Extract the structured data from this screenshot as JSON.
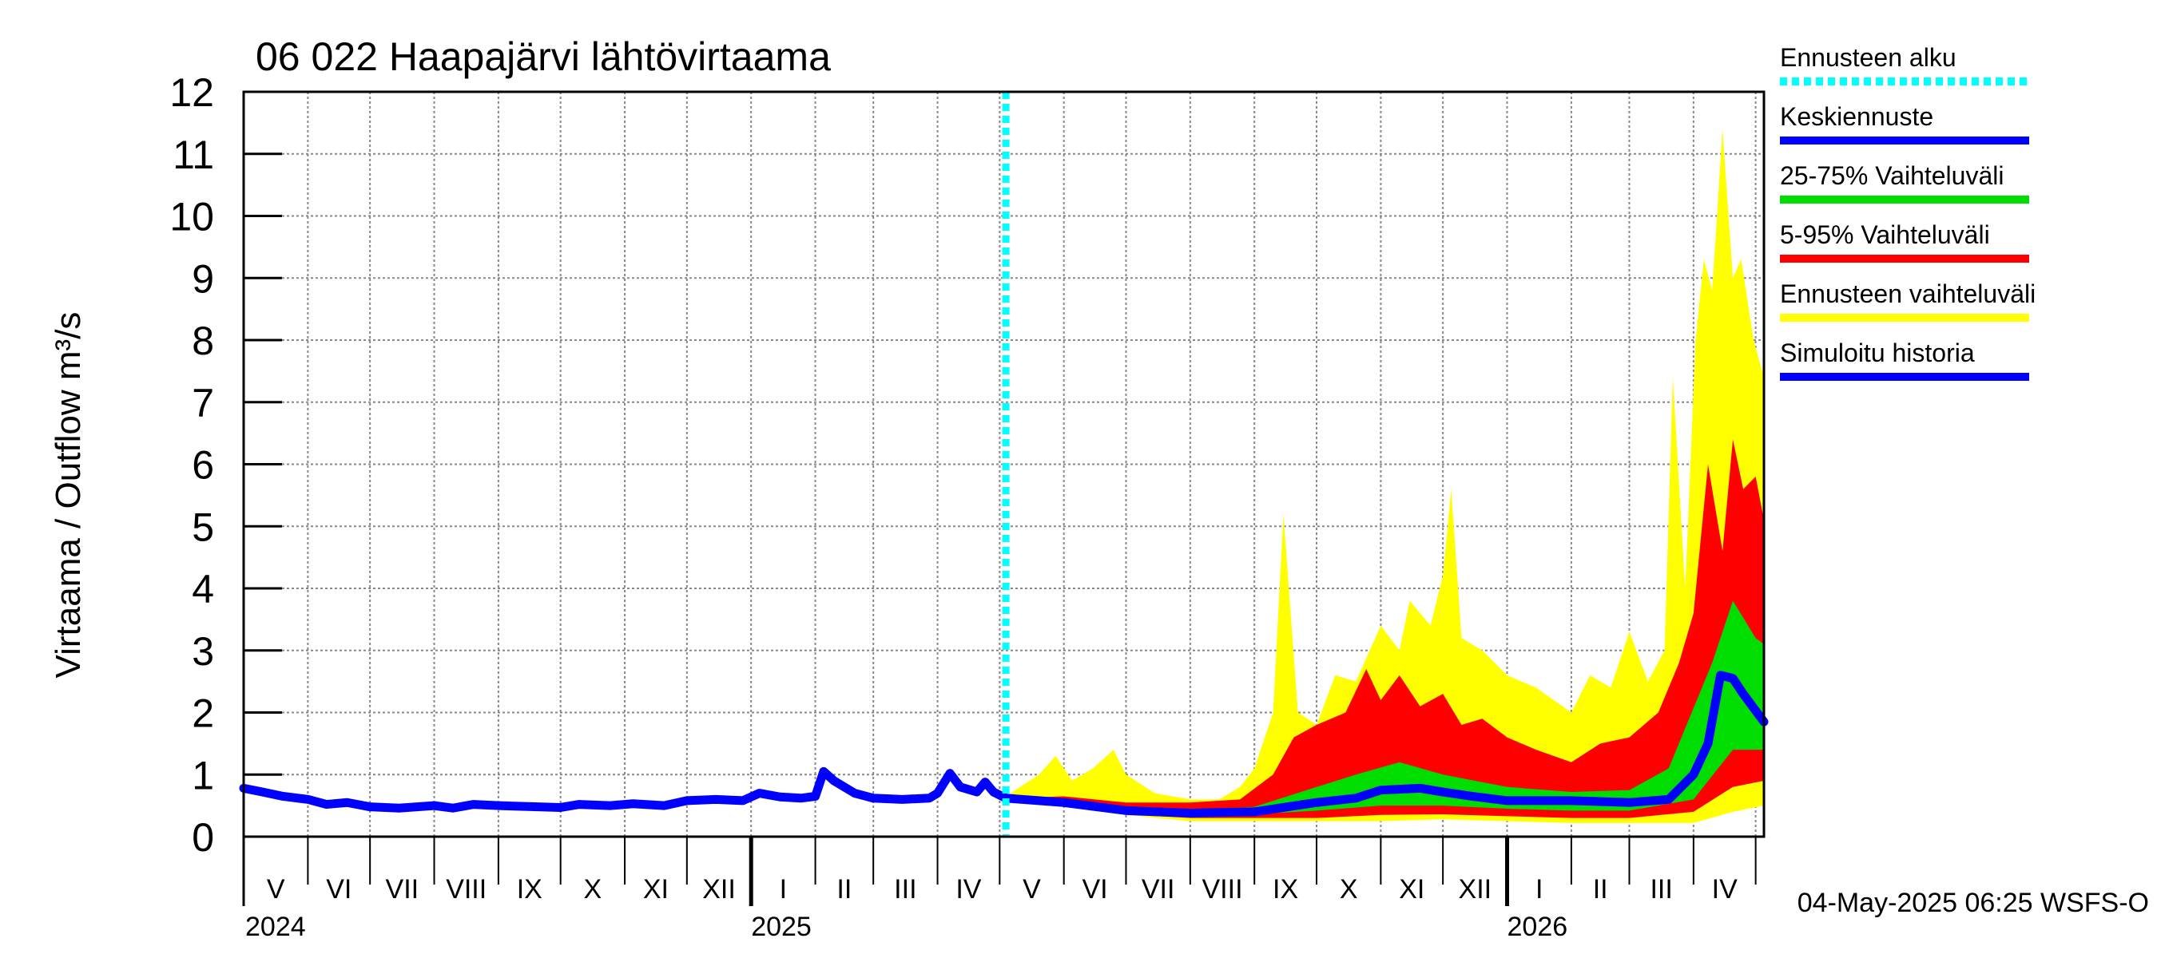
{
  "chart_data": {
    "type": "area",
    "title": "06 022 Haapajärvi lähtövirtaama",
    "ylabel": "Virtaama / Outflow    m³/s",
    "ylim": [
      0,
      12
    ],
    "yticks": [
      0,
      1,
      2,
      3,
      4,
      5,
      6,
      7,
      8,
      9,
      10,
      11,
      12
    ],
    "xlim": [
      "2024-05-01",
      "2026-05-05"
    ],
    "grid": true,
    "legend_position": "right",
    "month_labels": [
      "V",
      "VI",
      "VII",
      "VIII",
      "IX",
      "X",
      "XI",
      "XII",
      "I",
      "II",
      "III",
      "IV",
      "V",
      "VI",
      "VII",
      "VIII",
      "IX",
      "X",
      "XI",
      "XII",
      "I",
      "II",
      "III",
      "IV"
    ],
    "month_starts": [
      "2024-05-01",
      "2024-06-01",
      "2024-07-01",
      "2024-08-01",
      "2024-09-01",
      "2024-10-01",
      "2024-11-01",
      "2024-12-01",
      "2025-01-01",
      "2025-02-01",
      "2025-03-01",
      "2025-04-01",
      "2025-05-01",
      "2025-06-01",
      "2025-07-01",
      "2025-08-01",
      "2025-09-01",
      "2025-10-01",
      "2025-11-01",
      "2025-12-01",
      "2026-01-01",
      "2026-02-01",
      "2026-03-01",
      "2026-04-01",
      "2026-05-01"
    ],
    "year_labels": [
      {
        "label": "2024",
        "date": "2024-05-01"
      },
      {
        "label": "2025",
        "date": "2025-01-01"
      },
      {
        "label": "2026",
        "date": "2026-01-01"
      }
    ],
    "forecast_start": "2025-05-04",
    "footer": "04-May-2025 06:25 WSFS-O",
    "legend": [
      {
        "label": "Ennusteen alku",
        "color": "#00ffff",
        "style": "dotted"
      },
      {
        "label": "Keskiennuste",
        "color": "#0000ff",
        "style": "solid"
      },
      {
        "label": "25-75% Vaihteluväli",
        "color": "#00dd00",
        "style": "solid"
      },
      {
        "label": "5-95% Vaihteluväli",
        "color": "#ff0000",
        "style": "solid"
      },
      {
        "label": "Ennusteen vaihteluväli",
        "color": "#ffff00",
        "style": "solid"
      },
      {
        "label": "Simuloitu historia",
        "color": "#0000ff",
        "style": "solid"
      }
    ],
    "series": [
      {
        "name": "Simuloitu historia",
        "color": "#0000ff",
        "points": [
          [
            "2024-05-01",
            0.78
          ],
          [
            "2024-05-10",
            0.72
          ],
          [
            "2024-05-20",
            0.65
          ],
          [
            "2024-06-01",
            0.6
          ],
          [
            "2024-06-10",
            0.52
          ],
          [
            "2024-06-20",
            0.55
          ],
          [
            "2024-07-01",
            0.48
          ],
          [
            "2024-07-15",
            0.46
          ],
          [
            "2024-08-01",
            0.5
          ],
          [
            "2024-08-10",
            0.46
          ],
          [
            "2024-08-20",
            0.52
          ],
          [
            "2024-09-01",
            0.5
          ],
          [
            "2024-09-20",
            0.48
          ],
          [
            "2024-10-01",
            0.47
          ],
          [
            "2024-10-10",
            0.52
          ],
          [
            "2024-10-25",
            0.5
          ],
          [
            "2024-11-05",
            0.53
          ],
          [
            "2024-11-20",
            0.5
          ],
          [
            "2024-12-01",
            0.58
          ],
          [
            "2024-12-15",
            0.6
          ],
          [
            "2024-12-28",
            0.58
          ],
          [
            "2025-01-05",
            0.7
          ],
          [
            "2025-01-15",
            0.64
          ],
          [
            "2025-01-25",
            0.62
          ],
          [
            "2025-02-01",
            0.65
          ],
          [
            "2025-02-05",
            1.05
          ],
          [
            "2025-02-10",
            0.9
          ],
          [
            "2025-02-20",
            0.7
          ],
          [
            "2025-03-01",
            0.62
          ],
          [
            "2025-03-15",
            0.6
          ],
          [
            "2025-03-28",
            0.62
          ],
          [
            "2025-04-01",
            0.7
          ],
          [
            "2025-04-07",
            1.02
          ],
          [
            "2025-04-12",
            0.8
          ],
          [
            "2025-04-20",
            0.72
          ],
          [
            "2025-04-24",
            0.88
          ],
          [
            "2025-04-28",
            0.72
          ],
          [
            "2025-05-04",
            0.62
          ]
        ]
      },
      {
        "name": "Ennusteen vaihteluväli",
        "color": "#ffff00",
        "upper": [
          [
            "2025-05-04",
            0.65
          ],
          [
            "2025-05-20",
            1.0
          ],
          [
            "2025-05-28",
            1.3
          ],
          [
            "2025-06-05",
            0.9
          ],
          [
            "2025-06-15",
            1.1
          ],
          [
            "2025-06-25",
            1.4
          ],
          [
            "2025-07-01",
            1.0
          ],
          [
            "2025-07-15",
            0.7
          ],
          [
            "2025-08-01",
            0.6
          ],
          [
            "2025-08-15",
            0.6
          ],
          [
            "2025-08-25",
            0.8
          ],
          [
            "2025-09-01",
            1.1
          ],
          [
            "2025-09-10",
            2.0
          ],
          [
            "2025-09-15",
            5.2
          ],
          [
            "2025-09-22",
            2.0
          ],
          [
            "2025-10-01",
            1.8
          ],
          [
            "2025-10-10",
            2.6
          ],
          [
            "2025-10-20",
            2.5
          ],
          [
            "2025-11-01",
            3.4
          ],
          [
            "2025-11-10",
            3.0
          ],
          [
            "2025-11-15",
            3.8
          ],
          [
            "2025-11-25",
            3.4
          ],
          [
            "2025-12-01",
            4.2
          ],
          [
            "2025-12-05",
            5.6
          ],
          [
            "2025-12-10",
            3.2
          ],
          [
            "2025-12-20",
            3.0
          ],
          [
            "2026-01-01",
            2.6
          ],
          [
            "2026-01-15",
            2.4
          ],
          [
            "2026-02-01",
            2.0
          ],
          [
            "2026-02-10",
            2.6
          ],
          [
            "2026-02-20",
            2.4
          ],
          [
            "2026-03-01",
            3.3
          ],
          [
            "2026-03-10",
            2.5
          ],
          [
            "2026-03-18",
            3.0
          ],
          [
            "2026-03-22",
            7.4
          ],
          [
            "2026-03-28",
            4.0
          ],
          [
            "2026-04-02",
            8.0
          ],
          [
            "2026-04-06",
            9.3
          ],
          [
            "2026-04-10",
            8.8
          ],
          [
            "2026-04-15",
            11.4
          ],
          [
            "2026-04-20",
            9.0
          ],
          [
            "2026-04-24",
            9.3
          ],
          [
            "2026-04-30",
            8.0
          ],
          [
            "2026-05-05",
            7.4
          ]
        ],
        "lower": [
          [
            "2025-05-04",
            0.6
          ],
          [
            "2025-06-01",
            0.5
          ],
          [
            "2025-07-01",
            0.35
          ],
          [
            "2025-08-01",
            0.25
          ],
          [
            "2025-09-01",
            0.25
          ],
          [
            "2025-10-01",
            0.25
          ],
          [
            "2025-11-01",
            0.25
          ],
          [
            "2025-12-01",
            0.28
          ],
          [
            "2026-01-01",
            0.25
          ],
          [
            "2026-02-01",
            0.22
          ],
          [
            "2026-03-01",
            0.22
          ],
          [
            "2026-04-01",
            0.22
          ],
          [
            "2026-04-20",
            0.4
          ],
          [
            "2026-05-05",
            0.5
          ]
        ]
      },
      {
        "name": "5-95% Vaihteluväli",
        "color": "#ff0000",
        "upper": [
          [
            "2025-05-04",
            0.62
          ],
          [
            "2025-06-01",
            0.65
          ],
          [
            "2025-07-01",
            0.55
          ],
          [
            "2025-08-01",
            0.55
          ],
          [
            "2025-08-25",
            0.6
          ],
          [
            "2025-09-10",
            1.0
          ],
          [
            "2025-09-20",
            1.6
          ],
          [
            "2025-10-01",
            1.8
          ],
          [
            "2025-10-15",
            2.0
          ],
          [
            "2025-10-25",
            2.7
          ],
          [
            "2025-11-01",
            2.2
          ],
          [
            "2025-11-10",
            2.6
          ],
          [
            "2025-11-20",
            2.1
          ],
          [
            "2025-12-01",
            2.3
          ],
          [
            "2025-12-10",
            1.8
          ],
          [
            "2025-12-20",
            1.9
          ],
          [
            "2026-01-01",
            1.6
          ],
          [
            "2026-01-15",
            1.4
          ],
          [
            "2026-02-01",
            1.2
          ],
          [
            "2026-02-15",
            1.5
          ],
          [
            "2026-03-01",
            1.6
          ],
          [
            "2026-03-15",
            2.0
          ],
          [
            "2026-03-25",
            2.8
          ],
          [
            "2026-04-01",
            3.6
          ],
          [
            "2026-04-08",
            6.0
          ],
          [
            "2026-04-15",
            4.6
          ],
          [
            "2026-04-20",
            6.4
          ],
          [
            "2026-04-25",
            5.6
          ],
          [
            "2026-05-01",
            5.8
          ],
          [
            "2026-05-05",
            5.1
          ]
        ],
        "lower": [
          [
            "2025-05-04",
            0.6
          ],
          [
            "2025-06-01",
            0.5
          ],
          [
            "2025-07-01",
            0.36
          ],
          [
            "2025-08-01",
            0.3
          ],
          [
            "2025-09-01",
            0.3
          ],
          [
            "2025-10-01",
            0.3
          ],
          [
            "2025-11-01",
            0.35
          ],
          [
            "2025-12-01",
            0.36
          ],
          [
            "2026-01-01",
            0.33
          ],
          [
            "2026-02-01",
            0.3
          ],
          [
            "2026-03-01",
            0.3
          ],
          [
            "2026-04-01",
            0.4
          ],
          [
            "2026-04-20",
            0.8
          ],
          [
            "2026-05-05",
            0.9
          ]
        ]
      },
      {
        "name": "25-75% Vaihteluväli",
        "color": "#00dd00",
        "upper": [
          [
            "2025-05-04",
            0.62
          ],
          [
            "2025-06-01",
            0.58
          ],
          [
            "2025-07-01",
            0.46
          ],
          [
            "2025-08-01",
            0.42
          ],
          [
            "2025-09-01",
            0.48
          ],
          [
            "2025-10-01",
            0.8
          ],
          [
            "2025-10-20",
            1.0
          ],
          [
            "2025-11-10",
            1.2
          ],
          [
            "2025-12-01",
            1.0
          ],
          [
            "2026-01-01",
            0.8
          ],
          [
            "2026-02-01",
            0.72
          ],
          [
            "2026-03-01",
            0.75
          ],
          [
            "2026-03-20",
            1.1
          ],
          [
            "2026-04-10",
            2.8
          ],
          [
            "2026-04-20",
            3.8
          ],
          [
            "2026-05-01",
            3.2
          ],
          [
            "2026-05-05",
            3.1
          ]
        ],
        "lower": [
          [
            "2025-05-04",
            0.6
          ],
          [
            "2025-06-01",
            0.52
          ],
          [
            "2025-07-01",
            0.4
          ],
          [
            "2025-08-01",
            0.35
          ],
          [
            "2025-09-01",
            0.36
          ],
          [
            "2025-10-01",
            0.42
          ],
          [
            "2025-11-01",
            0.5
          ],
          [
            "2025-12-01",
            0.5
          ],
          [
            "2026-01-01",
            0.45
          ],
          [
            "2026-02-01",
            0.42
          ],
          [
            "2026-03-01",
            0.42
          ],
          [
            "2026-04-01",
            0.6
          ],
          [
            "2026-04-20",
            1.4
          ],
          [
            "2026-05-05",
            1.4
          ]
        ]
      },
      {
        "name": "Keskiennuste",
        "color": "#0000ff",
        "points": [
          [
            "2025-05-04",
            0.62
          ],
          [
            "2025-06-01",
            0.55
          ],
          [
            "2025-07-01",
            0.42
          ],
          [
            "2025-08-01",
            0.38
          ],
          [
            "2025-09-01",
            0.4
          ],
          [
            "2025-10-01",
            0.55
          ],
          [
            "2025-10-20",
            0.62
          ],
          [
            "2025-11-01",
            0.75
          ],
          [
            "2025-11-20",
            0.78
          ],
          [
            "2025-12-01",
            0.72
          ],
          [
            "2025-12-15",
            0.65
          ],
          [
            "2026-01-01",
            0.58
          ],
          [
            "2026-02-01",
            0.58
          ],
          [
            "2026-03-01",
            0.55
          ],
          [
            "2026-03-20",
            0.6
          ],
          [
            "2026-04-01",
            1.0
          ],
          [
            "2026-04-08",
            1.5
          ],
          [
            "2026-04-14",
            2.6
          ],
          [
            "2026-04-20",
            2.55
          ],
          [
            "2026-04-25",
            2.3
          ],
          [
            "2026-05-05",
            1.85
          ]
        ]
      }
    ]
  }
}
